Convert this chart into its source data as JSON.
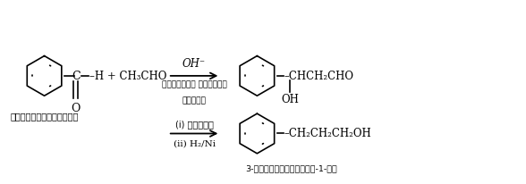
{
  "bg_color": "#ffffff",
  "line_color": "#000000",
  "fig_width": 5.88,
  "fig_height": 2.07,
  "dpi": 100,
  "benzaldehyde_label": "बेन्जैलिडहाइड",
  "arrow1_label_top": "OH⁻",
  "arrow1_label_mid": "क्रॉसित एल्डोल",
  "arrow1_label_bot": "संघनन",
  "arrow2_label_top": "(i) ऊष्मा",
  "arrow2_label_bot": "(ii) H₂/Ni",
  "product2_label": "3-फेनिलप्रोपेन-1-ऑल",
  "xlim": [
    0,
    10
  ],
  "ylim": [
    0,
    3.5
  ]
}
